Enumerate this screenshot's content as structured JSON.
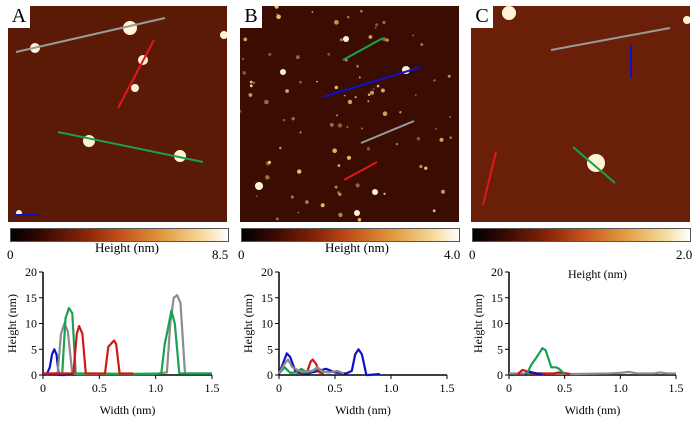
{
  "panels": [
    {
      "label": "A",
      "colorbar": {
        "min": "0",
        "max": "8.5",
        "title": "Height  (nm)"
      }
    },
    {
      "label": "B",
      "colorbar": {
        "min": "0",
        "max": "4.0",
        "title": "Height  (nm)"
      }
    },
    {
      "label": "C",
      "colorbar": {
        "min": "0",
        "max": "2.0",
        "title": "Height  (nm)"
      }
    }
  ],
  "colors": {
    "blue": "#1010c8",
    "gray": "#8c8c8c",
    "green": "#1aa050",
    "red": "#d01818",
    "afm_dark": "#3a0c02",
    "afm_bright": "#fff4d8"
  },
  "chart_data": [
    {
      "type": "line",
      "panel": "A",
      "xlabel": "Width  (nm)",
      "ylabel": "Height  (nm)",
      "xlim": [
        0,
        1.5
      ],
      "ylim": [
        0,
        20
      ],
      "xticks": [
        "0",
        "0.5",
        "1.0",
        "1.5"
      ],
      "yticks": [
        "0",
        "5",
        "10",
        "15",
        "20"
      ],
      "grid": false,
      "series": [
        {
          "color": "#1010c8",
          "x": [
            0.03,
            0.06,
            0.08,
            0.1,
            0.12,
            0.14,
            0.2
          ],
          "y": [
            0,
            1.5,
            4,
            5,
            4,
            0,
            0
          ]
        },
        {
          "color": "#8c8c8c",
          "x": [
            0,
            0.13,
            0.16,
            0.19,
            0.22,
            0.26,
            0.3,
            0.6,
            1.0,
            1.1,
            1.13,
            1.16,
            1.19,
            1.22,
            1.26,
            1.5
          ],
          "y": [
            0.3,
            0.3,
            8,
            10,
            8.5,
            0.3,
            0.2,
            0.2,
            0.2,
            0.5,
            10,
            15,
            15.5,
            14,
            0.3,
            0.3
          ]
        },
        {
          "color": "#1aa050",
          "x": [
            0.17,
            0.2,
            0.23,
            0.26,
            0.29,
            0.4,
            0.8,
            1.05,
            1.08,
            1.1,
            1.14,
            1.17,
            1.21,
            1.3,
            1.5
          ],
          "y": [
            0.2,
            11,
            13,
            12,
            0.3,
            0.3,
            0.2,
            0.3,
            6,
            8,
            12.5,
            10,
            0.3,
            0.3,
            0.3
          ]
        },
        {
          "color": "#d01818",
          "x": [
            0,
            0.1,
            0.27,
            0.3,
            0.32,
            0.35,
            0.38,
            0.5,
            0.55,
            0.58,
            0.63,
            0.65,
            0.68,
            0.8
          ],
          "y": [
            0.3,
            0.3,
            0.3,
            8,
            9.5,
            8,
            0.3,
            0.3,
            0.3,
            5.5,
            6.7,
            6,
            0.3,
            0.3
          ]
        }
      ]
    },
    {
      "type": "line",
      "panel": "B",
      "xlabel": "Width  (nm)",
      "ylabel": "Height  (nm)",
      "xlim": [
        0,
        1.5
      ],
      "ylim": [
        0,
        20
      ],
      "xticks": [
        "0",
        "0.5",
        "1.0",
        "1.5"
      ],
      "yticks": [
        "0",
        "5",
        "10",
        "15",
        "20"
      ],
      "grid": false,
      "series": [
        {
          "color": "#1010c8",
          "x": [
            0,
            0.04,
            0.07,
            0.1,
            0.15,
            0.25,
            0.35,
            0.42,
            0.5,
            0.6,
            0.65,
            0.68,
            0.71,
            0.74,
            0.78,
            0.8,
            0.9
          ],
          "y": [
            0.3,
            2.5,
            4.2,
            3.5,
            0.5,
            0.3,
            0.8,
            1.2,
            0.5,
            0.3,
            0.8,
            4,
            5,
            4,
            0,
            0,
            0.2
          ]
        },
        {
          "color": "#d01818",
          "x": [
            0.2,
            0.25,
            0.28,
            0.3,
            0.33,
            0.36,
            0.4
          ],
          "y": [
            0.3,
            0.5,
            2.5,
            3,
            2.2,
            0.5,
            0.3
          ]
        },
        {
          "color": "#1aa050",
          "x": [
            0,
            0.05,
            0.1,
            0.15,
            0.2,
            0.25,
            0.3,
            0.35,
            0.4
          ],
          "y": [
            0.3,
            1.5,
            0.4,
            0.5,
            1.2,
            0.5,
            0.8,
            1.3,
            0.4
          ]
        },
        {
          "color": "#8c8c8c",
          "x": [
            0,
            0.05,
            0.08,
            0.12,
            0.2,
            0.3,
            0.34,
            0.4,
            0.45,
            0.52,
            0.58
          ],
          "y": [
            0.3,
            2.2,
            3,
            1.5,
            0.6,
            0.8,
            1.5,
            0.6,
            0.5,
            0.8,
            0.3
          ]
        }
      ]
    },
    {
      "type": "line",
      "panel": "C",
      "title": "Height  (nm)",
      "xlabel": "Width  (nm)",
      "ylabel": "Height  (nm)",
      "xlim": [
        0,
        1.5
      ],
      "ylim": [
        0,
        20
      ],
      "xticks": [
        "0",
        "0.5",
        "1.0",
        "1.5"
      ],
      "yticks": [
        "0",
        "5",
        "10",
        "15",
        "20"
      ],
      "grid": false,
      "series": [
        {
          "color": "#8c8c8c",
          "x": [
            0,
            0.3,
            0.6,
            0.9,
            1.0,
            1.08,
            1.15,
            1.3,
            1.36,
            1.42,
            1.5
          ],
          "y": [
            0.3,
            0.3,
            0.2,
            0.3,
            0.4,
            0.6,
            0.3,
            0.3,
            0.5,
            0.3,
            0.3
          ]
        },
        {
          "color": "#d01818",
          "x": [
            0.08,
            0.12,
            0.15,
            0.2,
            0.4,
            0.45,
            0.55
          ],
          "y": [
            0.2,
            1,
            0.8,
            0.3,
            0.3,
            0.5,
            0.2
          ]
        },
        {
          "color": "#1010c8",
          "x": [
            0.15,
            0.18,
            0.21,
            0.25,
            0.3
          ],
          "y": [
            0.2,
            0.7,
            0.5,
            0.3,
            0.2
          ]
        },
        {
          "color": "#1aa050",
          "x": [
            0.16,
            0.2,
            0.25,
            0.3,
            0.33,
            0.38,
            0.42,
            0.45,
            0.5
          ],
          "y": [
            0.2,
            2,
            3.5,
            5.2,
            4.8,
            1.5,
            1.5,
            1.2,
            0.2
          ]
        }
      ]
    }
  ]
}
